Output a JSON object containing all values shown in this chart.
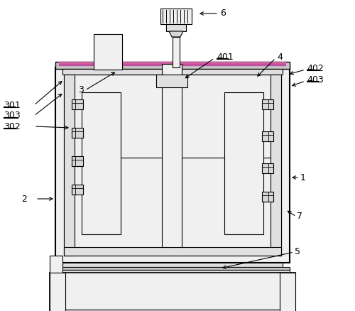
{
  "bg_color": "#ffffff",
  "lc": "#000000",
  "pink": "#e8a0c0",
  "gray1": "#c8c8c8",
  "gray2": "#e0e0e0",
  "gray3": "#f0f0f0",
  "gray4": "#d8d8d8"
}
